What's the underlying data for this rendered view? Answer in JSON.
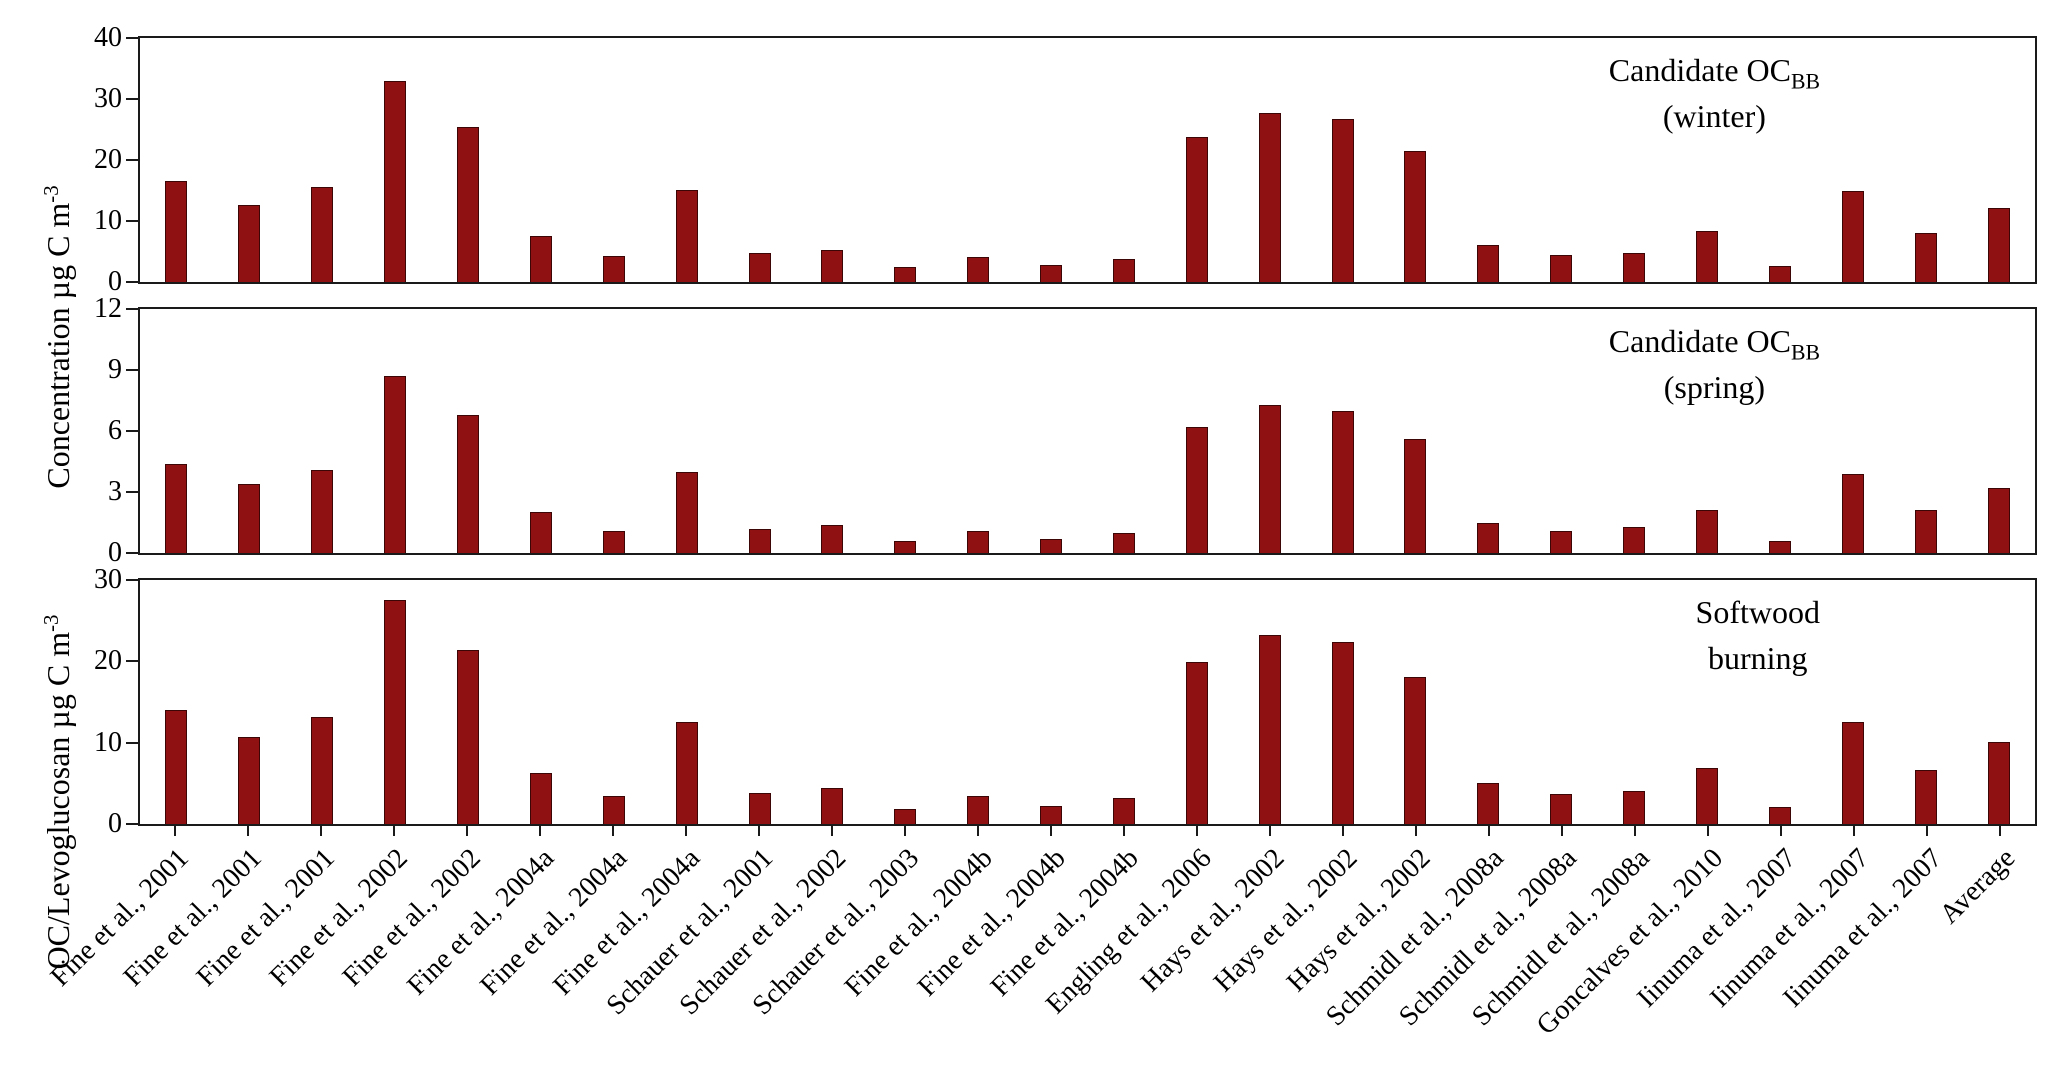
{
  "labels": {
    "y_top": {
      "text": "Concentration µg C m",
      "sup": "-3"
    },
    "y_bottom": {
      "text": "OC/Levoglucosan µg C m",
      "sup": "-3"
    }
  },
  "colors": {
    "bar": "#8F1111",
    "bar_border": "#3C0606",
    "axis": "#1A1A1A"
  },
  "chart_data": {
    "type": "bar",
    "grid": false,
    "legend": null,
    "categories": [
      "Fine et al., 2001",
      "Fine et al., 2001",
      "Fine et al., 2001",
      "Fine et al., 2002",
      "Fine et al., 2002",
      "Fine et al., 2004a",
      "Fine et al., 2004a",
      "Fine et al., 2004a",
      "Schauer et al., 2001",
      "Schauer et al., 2002",
      "Schauer et al., 2003",
      "Fine et al., 2004b",
      "Fine et al., 2004b",
      "Fine et al., 2004b",
      "Engling et al., 2006",
      "Hays et al., 2002",
      "Hays et al., 2002",
      "Hays et al., 2002",
      "Schmidl et al., 2008a",
      "Schmidl et al., 2008a",
      "Schmidl et al., 2008a",
      "Goncalves et al., 2010",
      "Iinuma et al., 2007",
      "Iinuma et al., 2007",
      "Iinuma et al., 2007",
      "Average"
    ],
    "panels": [
      {
        "name": "candidate-ocbb-winter",
        "title": {
          "main": "Candidate OC",
          "sub": "BB",
          "line2": "(winter)"
        },
        "ylabel": "Concentration µg C m-3",
        "ylim": [
          0,
          40
        ],
        "yticks": [
          0,
          10,
          20,
          30,
          40
        ],
        "values": [
          16.5,
          12.7,
          15.5,
          33.0,
          25.4,
          7.5,
          4.3,
          15.1,
          4.8,
          5.3,
          2.4,
          4.1,
          2.8,
          3.7,
          23.8,
          27.7,
          26.8,
          21.4,
          6.0,
          4.4,
          4.7,
          8.4,
          2.6,
          14.9,
          8.0,
          12.2
        ]
      },
      {
        "name": "candidate-ocbb-spring",
        "title": {
          "main": "Candidate OC",
          "sub": "BB",
          "line2": "(spring)"
        },
        "ylabel": "Concentration µg C m-3",
        "ylim": [
          0,
          12
        ],
        "yticks": [
          0,
          3,
          6,
          9,
          12
        ],
        "values": [
          4.4,
          3.4,
          4.1,
          8.7,
          6.8,
          2.0,
          1.1,
          4.0,
          1.2,
          1.4,
          0.6,
          1.1,
          0.7,
          1.0,
          6.2,
          7.3,
          7.0,
          5.6,
          1.5,
          1.1,
          1.3,
          2.1,
          0.6,
          3.9,
          2.1,
          3.2
        ]
      },
      {
        "name": "softwood-burning",
        "title": {
          "main": "Softwood",
          "sub": "",
          "line2": "burning"
        },
        "ylabel": "OC/Levoglucosan µg C m-3",
        "ylim": [
          0,
          30
        ],
        "yticks": [
          0,
          10,
          20,
          30
        ],
        "values": [
          14.0,
          10.7,
          13.2,
          27.6,
          21.4,
          6.3,
          3.5,
          12.6,
          3.8,
          4.4,
          1.8,
          3.5,
          2.2,
          3.2,
          19.9,
          23.3,
          22.4,
          18.1,
          5.0,
          3.7,
          4.0,
          6.9,
          2.1,
          12.5,
          6.7,
          10.1
        ]
      }
    ]
  }
}
